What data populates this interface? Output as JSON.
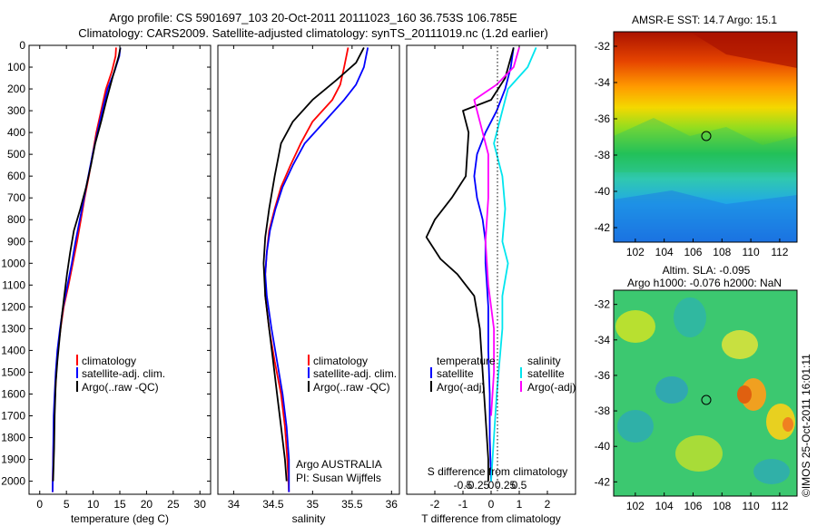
{
  "header": {
    "line1": "Argo profile: CS 5901697_103 20-Oct-2011 20111023_160 36.753S 106.785E",
    "line2": "Climatology: CARS2009. Satellite-adjusted climatology: synTS_20111019.nc (1.2d earlier)"
  },
  "map_top": {
    "title": "AMSR-E SST: 14.7  Argo: 15.1"
  },
  "map_bottom": {
    "title1": "Altim. SLA: -0.095",
    "title2": "Argo h1000: -0.076 h2000: NaN"
  },
  "stamp": "©IMOS 25-Oct-2011 16:01:11",
  "panel1_legend": [
    "climatology",
    "satellite-adj. clim.",
    "Argo(..raw -QC)"
  ],
  "panel2_legend": [
    "climatology",
    "satellite-adj. clim.",
    "Argo(..raw -QC)"
  ],
  "panel2_note": [
    "Argo AUSTRALIA",
    "PI: Susan Wijffels"
  ],
  "panel3_legend": {
    "temp_header": "temperature",
    "sal_header": "salinity",
    "temp_items": [
      "satellite",
      "Argo(-adj)"
    ],
    "sal_items": [
      "satellite",
      "Argo(-adj)"
    ]
  },
  "colors": {
    "climatology": "#ff0000",
    "satellite": "#0000ff",
    "argo": "#000000",
    "sal_satellite": "#00e5ee",
    "sal_argo": "#ff00ff"
  },
  "chart_data": [
    {
      "type": "line",
      "xlabel": "temperature (deg C)",
      "ylabel": "",
      "xlim": [
        -2,
        32
      ],
      "ylim": [
        2060,
        0
      ],
      "xticks": [
        0,
        5,
        10,
        15,
        20,
        25,
        30
      ],
      "yticks": [
        0,
        100,
        200,
        300,
        400,
        500,
        600,
        700,
        800,
        900,
        1000,
        1100,
        1200,
        1300,
        1400,
        1500,
        1600,
        1700,
        1800,
        1900,
        2000
      ],
      "series": [
        {
          "name": "climatology",
          "color": "#ff0000",
          "x": [
            14.3,
            14.2,
            13.5,
            12.4,
            11.5,
            10.6,
            9.9,
            9.2,
            8.4,
            7.7,
            7.0,
            6.2,
            5.4,
            4.5,
            3.9,
            3.4,
            3.1,
            2.9,
            2.7,
            2.5,
            2.4
          ],
          "depth": [
            10,
            50,
            120,
            200,
            300,
            400,
            500,
            600,
            700,
            800,
            900,
            1000,
            1100,
            1200,
            1300,
            1400,
            1500,
            1600,
            1700,
            1900,
            2050
          ]
        },
        {
          "name": "satellite-adj. clim.",
          "color": "#0000ff",
          "x": [
            15.1,
            14.9,
            14.0,
            12.7,
            11.7,
            10.8,
            9.9,
            9.1,
            8.3,
            7.5,
            6.7,
            6.0,
            5.2,
            4.4,
            3.8,
            3.3,
            3.0,
            2.8,
            2.6,
            2.5,
            2.4
          ],
          "depth": [
            10,
            50,
            120,
            200,
            300,
            400,
            500,
            600,
            700,
            800,
            900,
            1000,
            1100,
            1200,
            1300,
            1400,
            1500,
            1600,
            1700,
            1900,
            2050
          ]
        },
        {
          "name": "Argo(..raw -QC)",
          "color": "#000000",
          "x": [
            15.1,
            14.8,
            13.6,
            12.5,
            11.5,
            10.4,
            9.6,
            8.7,
            7.6,
            6.4,
            5.7,
            5.1,
            4.6,
            4.1,
            3.7,
            3.3,
            3.0,
            2.8,
            2.7,
            2.5
          ],
          "depth": [
            10,
            50,
            150,
            250,
            350,
            450,
            550,
            650,
            750,
            850,
            950,
            1050,
            1150,
            1250,
            1350,
            1450,
            1550,
            1700,
            1850,
            2000
          ]
        }
      ]
    },
    {
      "type": "line",
      "xlabel": "salinity",
      "xlim": [
        33.8,
        36.1
      ],
      "ylim": [
        2060,
        0
      ],
      "xticks": [
        34,
        34.5,
        35,
        35.5,
        36
      ],
      "series": [
        {
          "name": "climatology",
          "color": "#ff0000",
          "x": [
            35.45,
            35.4,
            35.35,
            35.25,
            35.0,
            34.85,
            34.72,
            34.6,
            34.52,
            34.45,
            34.42,
            34.4,
            34.4,
            34.45,
            34.52,
            34.6,
            34.65,
            34.68,
            34.7
          ],
          "depth": [
            10,
            100,
            180,
            250,
            350,
            450,
            550,
            650,
            750,
            850,
            950,
            1050,
            1150,
            1300,
            1450,
            1600,
            1750,
            1900,
            2050
          ]
        },
        {
          "name": "satellite-adj. clim.",
          "color": "#0000ff",
          "x": [
            35.7,
            35.65,
            35.55,
            35.4,
            35.15,
            34.9,
            34.75,
            34.62,
            34.53,
            34.46,
            34.42,
            34.4,
            34.42,
            34.48,
            34.55,
            34.62,
            34.67,
            34.7,
            34.7
          ],
          "depth": [
            10,
            100,
            180,
            250,
            350,
            450,
            550,
            650,
            750,
            850,
            950,
            1050,
            1150,
            1300,
            1450,
            1600,
            1750,
            1900,
            2050
          ]
        },
        {
          "name": "Argo(..raw -QC)",
          "color": "#000000",
          "x": [
            35.65,
            35.55,
            35.3,
            35.0,
            34.75,
            34.6,
            34.52,
            34.45,
            34.4,
            34.38,
            34.4,
            34.45,
            34.5,
            34.55,
            34.6,
            34.65,
            34.67
          ],
          "depth": [
            10,
            80,
            160,
            250,
            350,
            450,
            600,
            750,
            880,
            1000,
            1150,
            1300,
            1450,
            1600,
            1750,
            1900,
            2000
          ]
        }
      ]
    },
    {
      "type": "line",
      "xlabel": "T difference from climatology",
      "xlabel_top": "S difference from climatology",
      "xlim": [
        -3,
        3
      ],
      "ylim": [
        2060,
        0
      ],
      "xticks": [
        -2,
        -1,
        0,
        1,
        2
      ],
      "xticks_s": [
        -0.5,
        -0.25,
        0,
        0.25,
        0.5
      ],
      "series": [
        {
          "name": "temperature satellite",
          "color": "#0000ff",
          "x": [
            0.8,
            0.7,
            0.5,
            0.2,
            -0.2,
            -0.5,
            -0.6,
            -0.5,
            -0.3,
            -0.2,
            -0.2,
            -0.15,
            -0.1,
            -0.1,
            -0.05,
            -0.05,
            0
          ],
          "depth": [
            10,
            100,
            200,
            300,
            400,
            500,
            600,
            700,
            800,
            900,
            1000,
            1100,
            1200,
            1400,
            1600,
            1800,
            2000
          ]
        },
        {
          "name": "temperature Argo(-adj)",
          "color": "#000000",
          "x": [
            0.8,
            0.5,
            0.0,
            -1.0,
            -0.8,
            -0.9,
            -1.4,
            -2.0,
            -2.3,
            -1.8,
            -1.2,
            -0.6,
            -0.4,
            -0.3,
            -0.2,
            -0.1,
            -0.1
          ],
          "depth": [
            10,
            150,
            250,
            300,
            400,
            600,
            700,
            800,
            880,
            980,
            1050,
            1150,
            1300,
            1500,
            1700,
            1900,
            2000
          ]
        },
        {
          "name": "salinity satellite",
          "color": "#00e5ee",
          "x": [
            1.6,
            1.3,
            0.6,
            0.3,
            0.1,
            0.4,
            0.5,
            0.4,
            0.6,
            0.4,
            0.4,
            0.3,
            0.2,
            0.1,
            0.0
          ],
          "depth": [
            10,
            100,
            200,
            350,
            450,
            600,
            750,
            900,
            1000,
            1150,
            1300,
            1450,
            1600,
            1800,
            2000
          ]
        },
        {
          "name": "salinity Argo(-adj)",
          "color": "#ff00ff",
          "x": [
            1.0,
            0.8,
            0.2,
            -0.6,
            -0.4,
            -0.1,
            -0.1,
            -0.2,
            -0.1,
            0.1,
            0.1,
            0.0
          ],
          "depth": [
            10,
            100,
            180,
            250,
            350,
            500,
            700,
            900,
            1100,
            1300,
            1500,
            1700
          ]
        }
      ]
    }
  ],
  "map_axes": {
    "xticks": [
      102,
      104,
      106,
      108,
      110,
      112
    ],
    "yticks": [
      -32,
      -34,
      -36,
      -38,
      -40,
      -42
    ],
    "xlim": [
      100.5,
      113.2
    ],
    "ylim": [
      -42.8,
      -31.2
    ],
    "argo_lon": 106.785,
    "argo_lat": -36.753
  }
}
